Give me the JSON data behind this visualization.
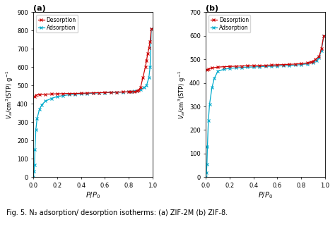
{
  "fig_label_a": "(a)",
  "fig_label_b": "(b)",
  "xlabel": "$P/P_0$",
  "ylabel_a": "$V_a$/cm$^3$(STP) g$^{-1}$",
  "ylabel_b": "$V_a$/cm$^3$(STP) g$^{-1}$",
  "legend_desorption": "Desorption",
  "legend_adsorption": "Adsorption",
  "color_desorption": "#cc0000",
  "color_adsorption": "#00aacc",
  "caption": "Fig. 5. N₂ adsorption/ desorption isotherms: (a) ZIF-2M (b) ZIF-8.",
  "panel_a": {
    "ylim": [
      0,
      900
    ],
    "yticks": [
      0,
      100,
      200,
      300,
      400,
      500,
      600,
      700,
      800,
      900
    ],
    "xlim": [
      0,
      1.0
    ],
    "xticks": [
      0,
      0.2,
      0.4,
      0.6,
      0.8,
      1.0
    ],
    "adsorption_x": [
      0.0,
      0.004,
      0.008,
      0.012,
      0.02,
      0.03,
      0.05,
      0.07,
      0.1,
      0.15,
      0.2,
      0.25,
      0.3,
      0.35,
      0.4,
      0.45,
      0.5,
      0.55,
      0.6,
      0.65,
      0.7,
      0.75,
      0.8,
      0.83,
      0.85,
      0.87,
      0.9,
      0.93,
      0.95,
      0.97,
      0.98,
      0.99
    ],
    "adsorption_y": [
      0,
      30,
      65,
      150,
      260,
      320,
      370,
      395,
      415,
      430,
      440,
      445,
      450,
      453,
      455,
      457,
      458,
      460,
      461,
      462,
      463,
      464,
      466,
      468,
      470,
      472,
      478,
      490,
      500,
      545,
      600,
      810
    ],
    "desorption_x": [
      0.99,
      0.98,
      0.97,
      0.96,
      0.95,
      0.94,
      0.92,
      0.9,
      0.88,
      0.87,
      0.85,
      0.82,
      0.8,
      0.75,
      0.7,
      0.65,
      0.6,
      0.55,
      0.5,
      0.45,
      0.4,
      0.35,
      0.3,
      0.25,
      0.2,
      0.15,
      0.1,
      0.05,
      0.02,
      0.01
    ],
    "desorption_y": [
      810,
      740,
      705,
      675,
      635,
      600,
      545,
      490,
      473,
      470,
      468,
      467,
      466,
      465,
      464,
      463,
      462,
      461,
      460,
      459,
      458,
      457,
      457,
      456,
      455,
      454,
      453,
      451,
      448,
      440
    ]
  },
  "panel_b": {
    "ylim": [
      0,
      700
    ],
    "yticks": [
      0,
      100,
      200,
      300,
      400,
      500,
      600,
      700
    ],
    "xlim": [
      0,
      1.0
    ],
    "xticks": [
      0,
      0.2,
      0.4,
      0.6,
      0.8,
      1.0
    ],
    "adsorption_x": [
      0.0,
      0.004,
      0.008,
      0.012,
      0.02,
      0.03,
      0.05,
      0.07,
      0.1,
      0.15,
      0.2,
      0.25,
      0.3,
      0.35,
      0.4,
      0.45,
      0.5,
      0.55,
      0.6,
      0.65,
      0.7,
      0.75,
      0.8,
      0.85,
      0.9,
      0.93,
      0.95,
      0.97,
      0.99
    ],
    "adsorption_y": [
      0,
      20,
      55,
      130,
      240,
      310,
      380,
      420,
      450,
      458,
      462,
      464,
      466,
      467,
      468,
      469,
      470,
      471,
      472,
      473,
      474,
      476,
      478,
      481,
      487,
      496,
      507,
      538,
      600
    ],
    "desorption_x": [
      0.99,
      0.97,
      0.95,
      0.92,
      0.9,
      0.88,
      0.85,
      0.8,
      0.75,
      0.7,
      0.65,
      0.6,
      0.55,
      0.5,
      0.45,
      0.4,
      0.35,
      0.3,
      0.25,
      0.2,
      0.15,
      0.1,
      0.05,
      0.02,
      0.01
    ],
    "desorption_y": [
      600,
      545,
      512,
      500,
      493,
      489,
      485,
      482,
      480,
      479,
      478,
      477,
      476,
      475,
      474,
      473,
      473,
      472,
      471,
      470,
      469,
      467,
      464,
      460,
      456
    ]
  },
  "marker": "x",
  "markersize": 2.5,
  "linewidth": 0.9,
  "background_color": "#ffffff"
}
